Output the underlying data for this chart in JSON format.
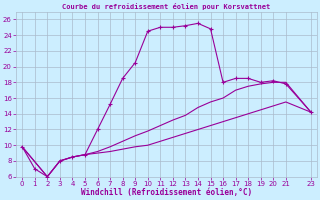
{
  "title": "Courbe du refroidissement éolien pour Korsvattnet",
  "xlabel": "Windchill (Refroidissement éolien,°C)",
  "bg_color": "#cceeff",
  "line_color": "#990099",
  "grid_color": "#aabbcc",
  "xlim": [
    -0.5,
    23.5
  ],
  "ylim": [
    6,
    27
  ],
  "xticks": [
    0,
    1,
    2,
    3,
    4,
    5,
    6,
    7,
    8,
    9,
    10,
    11,
    12,
    13,
    14,
    15,
    16,
    17,
    18,
    19,
    20,
    21,
    23
  ],
  "yticks": [
    6,
    8,
    10,
    12,
    14,
    16,
    18,
    20,
    22,
    24,
    26
  ],
  "line1_x": [
    0,
    1,
    2,
    3,
    4,
    5,
    6,
    7,
    8,
    9,
    10,
    11,
    12,
    13,
    14,
    15,
    16,
    17,
    18,
    19,
    20,
    21,
    23
  ],
  "line1_y": [
    9.8,
    7.0,
    6.0,
    8.0,
    8.5,
    8.8,
    12.0,
    15.2,
    18.5,
    20.5,
    24.5,
    25.0,
    25.0,
    25.2,
    25.5,
    24.8,
    18.0,
    18.5,
    18.5,
    18.0,
    18.2,
    17.8,
    14.2
  ],
  "line2_x": [
    0,
    2,
    3,
    4,
    5,
    6,
    7,
    8,
    9,
    10,
    11,
    12,
    13,
    14,
    15,
    16,
    17,
    18,
    19,
    20,
    21,
    23
  ],
  "line2_y": [
    9.8,
    6.0,
    8.0,
    8.5,
    8.8,
    9.0,
    9.2,
    9.5,
    9.8,
    10.0,
    10.5,
    11.0,
    11.5,
    12.0,
    12.5,
    13.0,
    13.5,
    14.0,
    14.5,
    15.0,
    15.5,
    14.2
  ],
  "line3_x": [
    0,
    2,
    3,
    4,
    5,
    6,
    7,
    8,
    9,
    10,
    11,
    12,
    13,
    14,
    15,
    16,
    17,
    18,
    19,
    20,
    21,
    23
  ],
  "line3_y": [
    9.8,
    6.0,
    8.0,
    8.5,
    8.8,
    9.2,
    9.8,
    10.5,
    11.2,
    11.8,
    12.5,
    13.2,
    13.8,
    14.8,
    15.5,
    16.0,
    17.0,
    17.5,
    17.8,
    18.0,
    18.0,
    14.2
  ]
}
